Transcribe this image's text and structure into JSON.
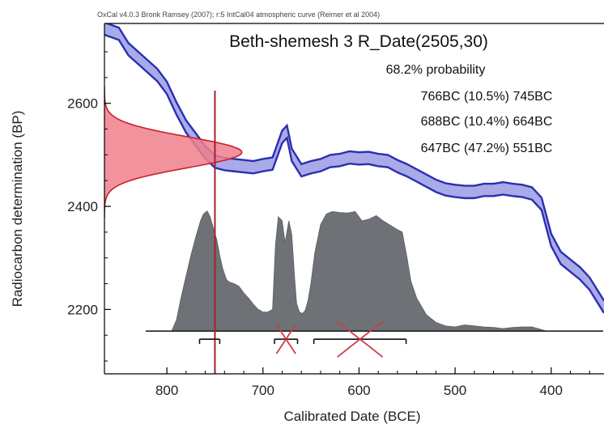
{
  "header": "OxCal v4.0.3 Bronk Ramsey (2007); r:5 IntCal04 atmospheric curve (Reimer et al 2004)",
  "chart_data": {
    "type": "calibration-plot",
    "title": "Beth-shemesh 3 R_Date(2505,30)",
    "xlabel": "Calibrated Date (BCE)",
    "ylabel": "Radiocarbon determination (BP)",
    "xlim": [
      865,
      345
    ],
    "ylim": [
      2075,
      2755
    ],
    "x_ticks": [
      800,
      700,
      600,
      500,
      400
    ],
    "y_ticks": [
      2200,
      2400,
      2600
    ],
    "radiocarbon_date": {
      "mean": 2505,
      "sigma": 30
    },
    "reference_line_x": 750,
    "probability_label": "68.2% probability",
    "ranges": [
      {
        "text": "766BC (10.5%) 745BC",
        "from": 766,
        "to": 745
      },
      {
        "text": "688BC (10.4%) 664BC",
        "from": 688,
        "to": 664
      },
      {
        "text": "647BC (47.2%) 551BC",
        "from": 647,
        "to": 551
      }
    ],
    "crossed_out_ranges": [
      1,
      2
    ],
    "calibration_curve": {
      "x": [
        865,
        850,
        840,
        825,
        810,
        800,
        790,
        780,
        770,
        760,
        750,
        740,
        730,
        720,
        710,
        700,
        690,
        680,
        675,
        670,
        660,
        650,
        640,
        630,
        620,
        610,
        600,
        590,
        580,
        570,
        560,
        550,
        540,
        530,
        520,
        510,
        500,
        490,
        480,
        470,
        460,
        450,
        440,
        430,
        420,
        410,
        400,
        390,
        380,
        370,
        360,
        350,
        345
      ],
      "y": [
        2745,
        2735,
        2705,
        2680,
        2655,
        2630,
        2590,
        2555,
        2530,
        2505,
        2487,
        2482,
        2480,
        2478,
        2476,
        2480,
        2483,
        2535,
        2545,
        2500,
        2470,
        2476,
        2480,
        2488,
        2490,
        2495,
        2493,
        2494,
        2490,
        2488,
        2478,
        2470,
        2460,
        2450,
        2440,
        2433,
        2430,
        2428,
        2428,
        2432,
        2432,
        2435,
        2432,
        2430,
        2425,
        2405,
        2335,
        2300,
        2285,
        2270,
        2250,
        2220,
        2205
      ],
      "band_halfwidth": 12
    },
    "calibrated_distribution": {
      "baseline": 2158,
      "x": [
        795,
        790,
        785,
        780,
        775,
        770,
        765,
        762,
        758,
        755,
        752,
        748,
        745,
        742,
        738,
        735,
        730,
        725,
        720,
        715,
        710,
        705,
        700,
        695,
        690,
        687,
        684,
        680,
        677,
        673,
        670,
        667,
        665,
        662,
        659,
        656,
        653,
        650,
        646,
        640,
        634,
        628,
        620,
        612,
        604,
        597,
        590,
        582,
        575,
        568,
        561,
        555,
        550,
        546,
        540,
        530,
        520,
        510,
        500,
        490,
        480,
        470,
        460,
        450,
        440,
        430,
        420,
        412,
        405
      ],
      "y": [
        2158,
        2180,
        2225,
        2265,
        2305,
        2340,
        2372,
        2385,
        2391,
        2380,
        2360,
        2335,
        2305,
        2280,
        2258,
        2253,
        2250,
        2245,
        2232,
        2222,
        2210,
        2200,
        2195,
        2195,
        2200,
        2325,
        2380,
        2372,
        2330,
        2372,
        2345,
        2260,
        2212,
        2195,
        2192,
        2198,
        2218,
        2252,
        2310,
        2365,
        2385,
        2390,
        2388,
        2387,
        2390,
        2372,
        2375,
        2382,
        2372,
        2364,
        2356,
        2350,
        2300,
        2255,
        2222,
        2190,
        2175,
        2168,
        2166,
        2170,
        2168,
        2166,
        2165,
        2163,
        2165,
        2166,
        2166,
        2162,
        2158
      ]
    },
    "date_likelihood": {
      "peak_x": 722,
      "base_x": 865
    }
  }
}
